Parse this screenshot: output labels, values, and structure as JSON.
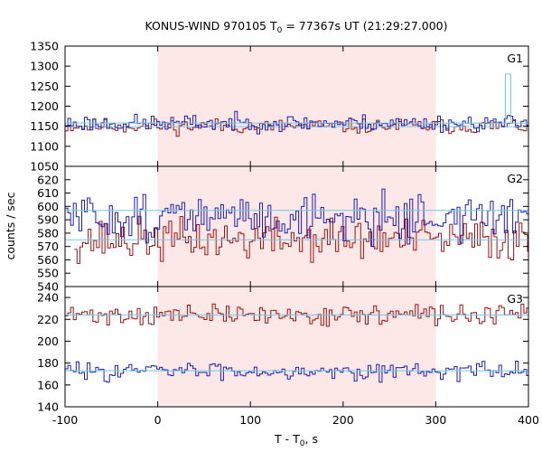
{
  "title": {
    "prefix": "KONUS-WIND 970105 T",
    "sub": "0",
    "suffix": " = 77367s UT (21:29:27.000)"
  },
  "xlabel": {
    "prefix": "T - T",
    "sub": "0",
    "suffix": ", s"
  },
  "ylabel": "counts / sec",
  "colors": {
    "red_series": "#a01010",
    "blue_series": "#1c1cb8",
    "fit_line": "#6ec8ec",
    "shade": "#fde8e8",
    "axis": "#000000"
  },
  "chart_data": {
    "type": "line",
    "xlim": [
      -100,
      400
    ],
    "x_ticks": [
      "-100",
      "0",
      "100",
      "200",
      "300",
      "400"
    ],
    "x_tick_values": [
      -100,
      0,
      100,
      200,
      300,
      400
    ],
    "shaded_interval": [
      0,
      300
    ],
    "step": 3,
    "panels": [
      {
        "label": "G1",
        "ylim": [
          1050,
          1350
        ],
        "y_ticks": [
          1050,
          1100,
          1150,
          1200,
          1250,
          1300,
          1350
        ],
        "series": [
          {
            "color": "red",
            "base": 1150,
            "amp": 14,
            "seed": 11,
            "fit": 1149,
            "start_x": -100
          },
          {
            "color": "blue",
            "base": 1158,
            "amp": 16,
            "seed": 23,
            "fit": 1158,
            "start_x": -100,
            "spike_x": 378,
            "spike_y": 1280
          }
        ]
      },
      {
        "label": "G2",
        "ylim": [
          540,
          630
        ],
        "y_ticks": [
          540,
          550,
          560,
          570,
          580,
          590,
          600,
          610,
          620
        ],
        "series": [
          {
            "color": "red",
            "base": 575,
            "amp": 12,
            "seed": 37,
            "fit": 575,
            "start_x": -90
          },
          {
            "color": "blue",
            "base": 592,
            "amp": 13,
            "seed": 51,
            "fit": 597,
            "start_x": -100
          }
        ]
      },
      {
        "label": "G3",
        "ylim": [
          140,
          250
        ],
        "y_ticks": [
          140,
          160,
          180,
          200,
          220,
          240
        ],
        "series": [
          {
            "color": "red",
            "base": 224,
            "amp": 7,
            "seed": 71,
            "fit": 224,
            "start_x": -100
          },
          {
            "color": "blue",
            "base": 173,
            "amp": 6,
            "seed": 83,
            "fit": 173,
            "start_x": -100
          }
        ]
      }
    ]
  }
}
